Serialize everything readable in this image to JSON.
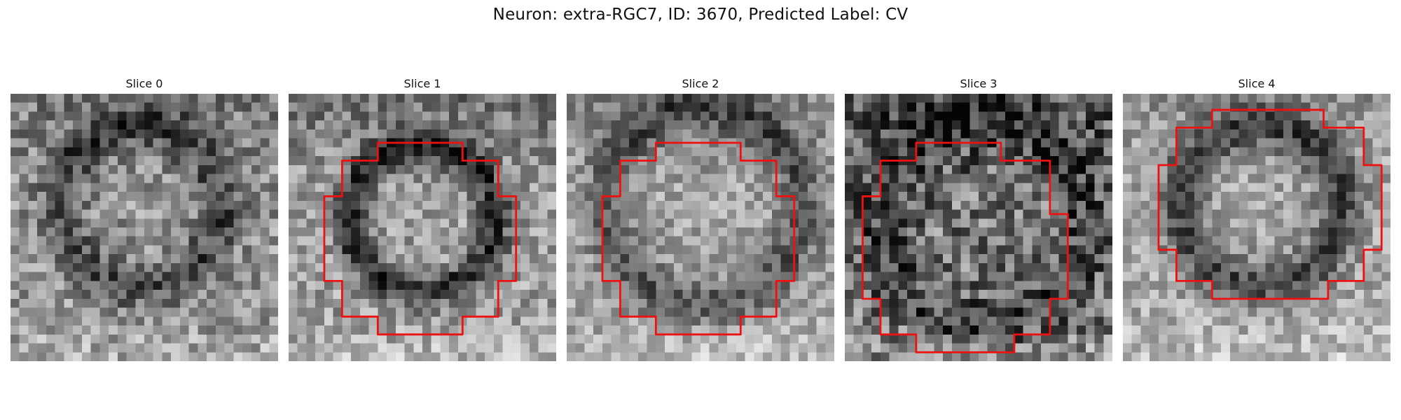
{
  "figure": {
    "suptitle": "Neuron: extra-RGC7, ID: 3670, Predicted Label: CV"
  },
  "contour_color": "#ee1111",
  "image_colormap": "gray",
  "panels": [
    {
      "title": "Slice 0",
      "has_contour": false
    },
    {
      "title": "Slice 1",
      "has_contour": true
    },
    {
      "title": "Slice 2",
      "has_contour": true
    },
    {
      "title": "Slice 3",
      "has_contour": true
    },
    {
      "title": "Slice 4",
      "has_contour": true
    }
  ]
}
